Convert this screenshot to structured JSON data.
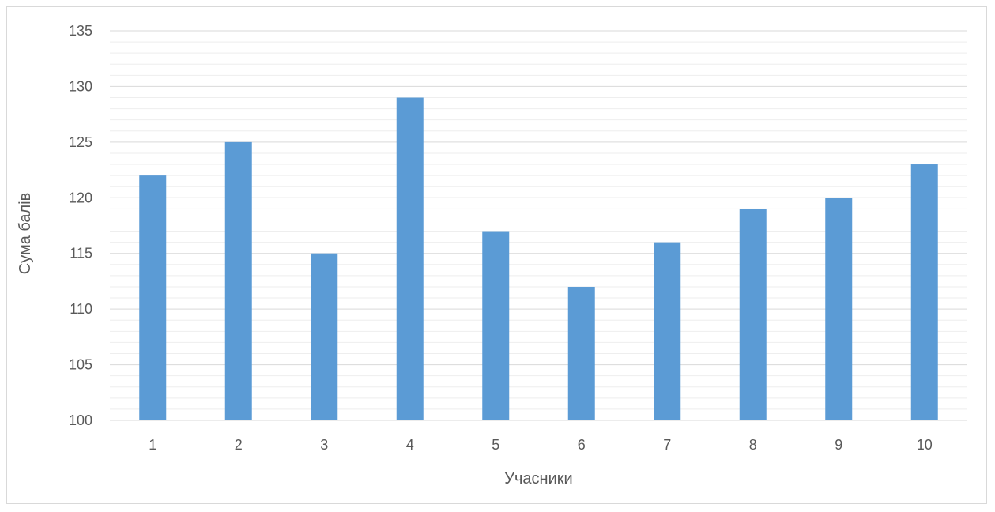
{
  "chart_data": {
    "type": "bar",
    "categories": [
      "1",
      "2",
      "3",
      "4",
      "5",
      "6",
      "7",
      "8",
      "9",
      "10"
    ],
    "series": [
      {
        "values": [
          122,
          125,
          115,
          129,
          117,
          112,
          116,
          119,
          120,
          123
        ]
      }
    ],
    "xlabel": "Учасники",
    "ylabel": "Сума балів",
    "ylim": [
      100,
      135
    ],
    "ytick_step": 5,
    "yticks": [
      "100",
      "105",
      "110",
      "115",
      "120",
      "125",
      "130",
      "135"
    ],
    "minor_grid_step": 1,
    "grid": true,
    "legend": false,
    "colors": {
      "bar": "#5b9bd5",
      "major_grid": "#d9d9d9",
      "minor_grid": "#eeeeee",
      "text": "#595959"
    }
  }
}
